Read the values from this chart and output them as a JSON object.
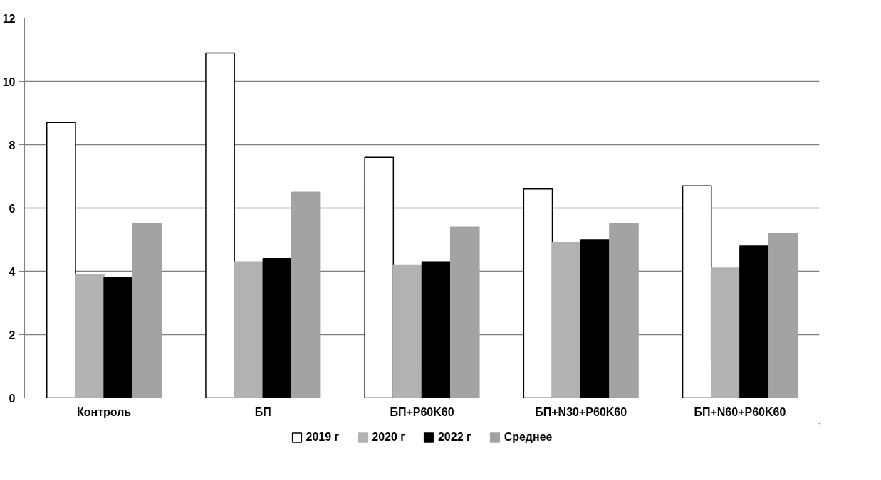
{
  "chart_data": {
    "type": "bar",
    "categories": [
      "Контроль",
      "БП",
      "БП+P60K60",
      "БП+N30+P60K60",
      "БП+N60+P60K60"
    ],
    "series": [
      {
        "name": "2019 г",
        "color": "#ffffff",
        "values": [
          8.7,
          10.9,
          7.6,
          6.6,
          6.7
        ]
      },
      {
        "name": "2020 г",
        "color": "#b2b2b2",
        "values": [
          3.9,
          4.3,
          4.2,
          4.9,
          4.1
        ]
      },
      {
        "name": "2022 г",
        "color": "#000000",
        "values": [
          3.8,
          4.4,
          4.3,
          5.0,
          4.8
        ]
      },
      {
        "name": "Среднее",
        "color": "#a3a3a3",
        "values": [
          5.5,
          6.5,
          5.4,
          5.5,
          5.2
        ]
      }
    ],
    "ylim": [
      0,
      12
    ],
    "yticks": [
      0,
      2,
      4,
      6,
      8,
      10,
      12
    ],
    "grid": "y",
    "legend": "bottom"
  }
}
